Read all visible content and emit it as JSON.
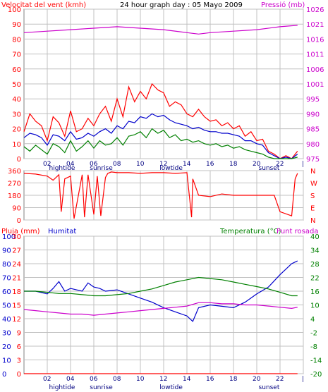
{
  "window": {
    "title": "24 hour graph day : 05 Mayo 2009",
    "background": "#ffffff"
  },
  "colors": {
    "wind": "#ff0000",
    "avg_wind": "#0000cc",
    "gust_green": "#008000",
    "pressure": "#cc00cc",
    "humidity": "#0000cc",
    "temperature": "#008000",
    "dewpoint": "#cc00cc",
    "rain": "#ff0000",
    "grid": "#c0c0c0",
    "frame": "#808080"
  },
  "x_ticks": [
    "02",
    "04",
    "06",
    "08",
    "10",
    "12",
    "14",
    "16",
    "18",
    "20",
    "22",
    "|"
  ],
  "annotations": {
    "top": [
      "hightide",
      "sunrise",
      "lowtide",
      "sunset"
    ],
    "bottom": [
      "hightide",
      "sunrise",
      "lowtide",
      "sunset"
    ]
  },
  "chart_data": [
    {
      "type": "line",
      "title": "24 hour graph day : 05 Mayo 2009",
      "ylabel_left": "Velocitat del vent (kmh)",
      "ylabel_right": "Pressió (mb)",
      "y_left_ticks": [
        "0",
        "10",
        "20",
        "30",
        "40",
        "50",
        "60",
        "70",
        "80",
        "90",
        "100"
      ],
      "y_right_ticks": [
        "975",
        "980",
        "985",
        "990",
        "995",
        "1001",
        "1006",
        "1011",
        "1016",
        "1021",
        "1026"
      ],
      "ylim_left": [
        0,
        100
      ],
      "ylim_right": [
        975,
        1026
      ],
      "grid": true,
      "series": [
        {
          "key": "wind_gust",
          "color": "#ff0000",
          "x": [
            0,
            0.5,
            1,
            1.5,
            2,
            2.5,
            3,
            3.5,
            4,
            4.5,
            5,
            5.5,
            6,
            6.5,
            7,
            7.5,
            8,
            8.5,
            9,
            9.5,
            10,
            10.5,
            11,
            11.5,
            12,
            12.5,
            13,
            13.5,
            14,
            14.5,
            15,
            15.5,
            16,
            16.5,
            17,
            17.5,
            18,
            18.5,
            19,
            19.5,
            20,
            20.5,
            21,
            21.5,
            22,
            22.5,
            23,
            23.5
          ],
          "values": [
            18,
            30,
            25,
            22,
            12,
            28,
            24,
            15,
            32,
            18,
            20,
            27,
            22,
            30,
            35,
            25,
            40,
            28,
            48,
            38,
            45,
            40,
            50,
            46,
            44,
            35,
            38,
            36,
            30,
            28,
            33,
            28,
            25,
            26,
            22,
            24,
            20,
            22,
            15,
            18,
            12,
            13,
            5,
            3,
            0,
            2,
            0,
            5
          ]
        },
        {
          "key": "wind_avg",
          "color": "#0000cc",
          "x": [
            0,
            0.5,
            1,
            1.5,
            2,
            2.5,
            3,
            3.5,
            4,
            4.5,
            5,
            5.5,
            6,
            6.5,
            7,
            7.5,
            8,
            8.5,
            9,
            9.5,
            10,
            10.5,
            11,
            11.5,
            12,
            12.5,
            13,
            13.5,
            14,
            14.5,
            15,
            15.5,
            16,
            16.5,
            17,
            17.5,
            18,
            18.5,
            19,
            19.5,
            20,
            20.5,
            21,
            21.5,
            22,
            22.5,
            23,
            23.5
          ],
          "values": [
            14,
            17,
            16,
            14,
            9,
            16,
            15,
            12,
            18,
            13,
            14,
            17,
            15,
            18,
            20,
            17,
            22,
            20,
            25,
            24,
            28,
            27,
            30,
            28,
            29,
            26,
            24,
            23,
            22,
            20,
            21,
            19,
            18,
            18,
            17,
            17,
            16,
            15,
            12,
            12,
            10,
            9,
            4,
            2,
            0,
            1,
            0,
            3
          ]
        },
        {
          "key": "wind_min",
          "color": "#008000",
          "x": [
            0,
            0.5,
            1,
            1.5,
            2,
            2.5,
            3,
            3.5,
            4,
            4.5,
            5,
            5.5,
            6,
            6.5,
            7,
            7.5,
            8,
            8.5,
            9,
            9.5,
            10,
            10.5,
            11,
            11.5,
            12,
            12.5,
            13,
            13.5,
            14,
            14.5,
            15,
            15.5,
            16,
            16.5,
            17,
            17.5,
            18,
            18.5,
            19,
            19.5,
            20,
            20.5,
            21,
            21.5,
            22,
            22.5,
            23,
            23.5
          ],
          "values": [
            8,
            5,
            9,
            6,
            3,
            10,
            8,
            4,
            12,
            5,
            8,
            12,
            7,
            12,
            9,
            10,
            14,
            9,
            15,
            16,
            18,
            14,
            20,
            17,
            19,
            14,
            16,
            12,
            13,
            11,
            12,
            10,
            9,
            10,
            8,
            9,
            7,
            8,
            6,
            5,
            4,
            3,
            1,
            0,
            0,
            0,
            0,
            1
          ]
        },
        {
          "key": "pressure",
          "color": "#cc00cc",
          "axis": "right",
          "x": [
            0,
            2,
            4,
            6,
            8,
            10,
            12,
            14,
            15,
            16,
            18,
            20,
            22,
            23.5
          ],
          "values": [
            1018,
            1018.5,
            1019,
            1019.5,
            1020,
            1019.5,
            1019,
            1018,
            1017.5,
            1018,
            1018.5,
            1019,
            1020,
            1020.5
          ]
        }
      ]
    },
    {
      "type": "line",
      "ylabel_right": "",
      "y_left_ticks": [
        "360",
        "270",
        "180",
        "90",
        "0"
      ],
      "y_right_ticks": [
        "N",
        "W",
        "S",
        "E",
        "N"
      ],
      "ylim": [
        0,
        360
      ],
      "series": [
        {
          "key": "wind_direction",
          "color": "#ff0000",
          "x": [
            0,
            1,
            2,
            2.5,
            3,
            3.2,
            3.5,
            4,
            4.3,
            5,
            5.2,
            5.5,
            6,
            6.3,
            6.6,
            7,
            7.2,
            7.5,
            8,
            9,
            10,
            11,
            12,
            13,
            14,
            14.4,
            14.5,
            15,
            16,
            17,
            18,
            19,
            20,
            21,
            21.5,
            22,
            23,
            23.3,
            23.5
          ],
          "values": [
            340,
            335,
            320,
            290,
            330,
            60,
            300,
            320,
            10,
            330,
            20,
            330,
            40,
            320,
            30,
            310,
            340,
            350,
            345,
            345,
            340,
            345,
            345,
            340,
            345,
            20,
            300,
            180,
            170,
            190,
            180,
            180,
            180,
            180,
            180,
            60,
            30,
            300,
            340
          ]
        }
      ]
    },
    {
      "type": "line",
      "ylabel_left": "Pluja (mm)",
      "ylabel_humidity": "Humitat",
      "ylabel_right": "Temperatura (°C)",
      "ylabel_right2": "Punt rosada",
      "y_left_ticks": [
        "0",
        "3",
        "6",
        "9",
        "12",
        "15",
        "18",
        "21",
        "24",
        "27",
        "30"
      ],
      "y_humidity_ticks": [
        "0",
        "10",
        "20",
        "30",
        "40",
        "50",
        "60",
        "70",
        "80",
        "90",
        "100"
      ],
      "y_right_ticks": [
        "-20",
        "-14",
        "-8",
        "-2",
        "4",
        "10",
        "16",
        "22",
        "28",
        "34",
        "40"
      ],
      "ylim_left": [
        0,
        30
      ],
      "ylim_humidity": [
        0,
        100
      ],
      "ylim_right": [
        -20,
        40
      ],
      "series": [
        {
          "key": "humidity",
          "color": "#0000cc",
          "axis": "humidity",
          "x": [
            0,
            1,
            2,
            2.5,
            3,
            3.5,
            4,
            5,
            5.5,
            6,
            6.5,
            7,
            8,
            9,
            10,
            11,
            12,
            13,
            14,
            14.5,
            15,
            16,
            17,
            18,
            19,
            20,
            21,
            22,
            23,
            23.5
          ],
          "values": [
            60,
            60,
            58,
            62,
            67,
            60,
            62,
            60,
            66,
            63,
            62,
            60,
            61,
            58,
            55,
            52,
            48,
            45,
            42,
            38,
            48,
            50,
            49,
            48,
            52,
            58,
            63,
            72,
            80,
            82
          ]
        },
        {
          "key": "temperature",
          "color": "#008000",
          "axis": "right",
          "x": [
            0,
            1,
            2,
            3,
            4,
            5,
            6,
            7,
            8,
            9,
            10,
            11,
            12,
            13,
            14,
            15,
            16,
            17,
            18,
            19,
            20,
            21,
            22,
            23,
            23.5
          ],
          "values": [
            16,
            16,
            15.5,
            15,
            15,
            14.5,
            14,
            14,
            14.5,
            15,
            16,
            17,
            18.5,
            20,
            21,
            22,
            21.5,
            21,
            20,
            19,
            18,
            17,
            15.5,
            14,
            14
          ]
        },
        {
          "key": "dewpoint",
          "color": "#cc00cc",
          "axis": "right",
          "x": [
            0,
            1,
            2,
            3,
            4,
            5,
            6,
            7,
            8,
            9,
            10,
            11,
            12,
            13,
            14,
            15,
            16,
            17,
            18,
            19,
            20,
            21,
            22,
            23,
            23.5
          ],
          "values": [
            8,
            7.5,
            7,
            6.5,
            6,
            6,
            5.5,
            6,
            6.5,
            7,
            7.5,
            8,
            8.5,
            9,
            9.5,
            11,
            11,
            10.5,
            10.5,
            10,
            10,
            9.5,
            9,
            8.5,
            9
          ]
        },
        {
          "key": "rain",
          "color": "#ff0000",
          "axis": "left",
          "x": [
            0,
            23.5
          ],
          "values": [
            0,
            0
          ]
        }
      ]
    }
  ]
}
